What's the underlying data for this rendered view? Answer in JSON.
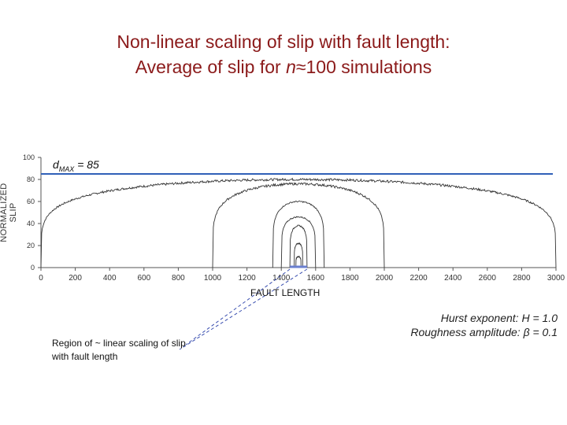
{
  "title": {
    "line1": "Non-linear scaling of slip with fault length:",
    "line2_prefix": "Average of slip for ",
    "line2_n": "n",
    "line2_approx": "≈",
    "line2_suffix": "100 simulations"
  },
  "dmax": {
    "d": "d",
    "sub": "MAX",
    "value": " = 85"
  },
  "notes": {
    "hurst": "Hurst exponent:  H = 1.0",
    "roughness": "Roughness amplitude:  β = 0.1",
    "region": "Region of ~ linear scaling of slip with fault length"
  },
  "chart_data": {
    "type": "line",
    "xlabel": "FAULT LENGTH",
    "ylabel": "NORMALIZED SLIP",
    "xlim": [
      0,
      3000
    ],
    "ylim": [
      0,
      100
    ],
    "xticks": [
      "0",
      "200",
      "400",
      "600",
      "800",
      "1000",
      "1200",
      "1400",
      "1600",
      "1800",
      "2000",
      "2200",
      "2400",
      "2600",
      "2800",
      "3000"
    ],
    "yticks": [
      "0",
      "20",
      "40",
      "60",
      "80",
      "100"
    ],
    "reference_line": {
      "y": 85,
      "color": "#3060b8"
    },
    "series": [
      {
        "fault_length": 3000,
        "start": 0,
        "end": 3000,
        "plateau": 80
      },
      {
        "fault_length": 1000,
        "start": 1000,
        "end": 2000,
        "plateau": 76
      },
      {
        "fault_length": 300,
        "start": 1350,
        "end": 1650,
        "plateau": 60
      },
      {
        "fault_length": 200,
        "start": 1400,
        "end": 1600,
        "plateau": 46
      },
      {
        "fault_length": 100,
        "start": 1450,
        "end": 1550,
        "plateau": 38
      },
      {
        "fault_length": 50,
        "start": 1475,
        "end": 1525,
        "plateau": 22
      },
      {
        "fault_length": 30,
        "start": 1485,
        "end": 1515,
        "plateau": 10
      }
    ],
    "highlight_interval": {
      "start": 1450,
      "end": 1550,
      "color": "#6a7fd0"
    },
    "line_color": "#333333"
  }
}
